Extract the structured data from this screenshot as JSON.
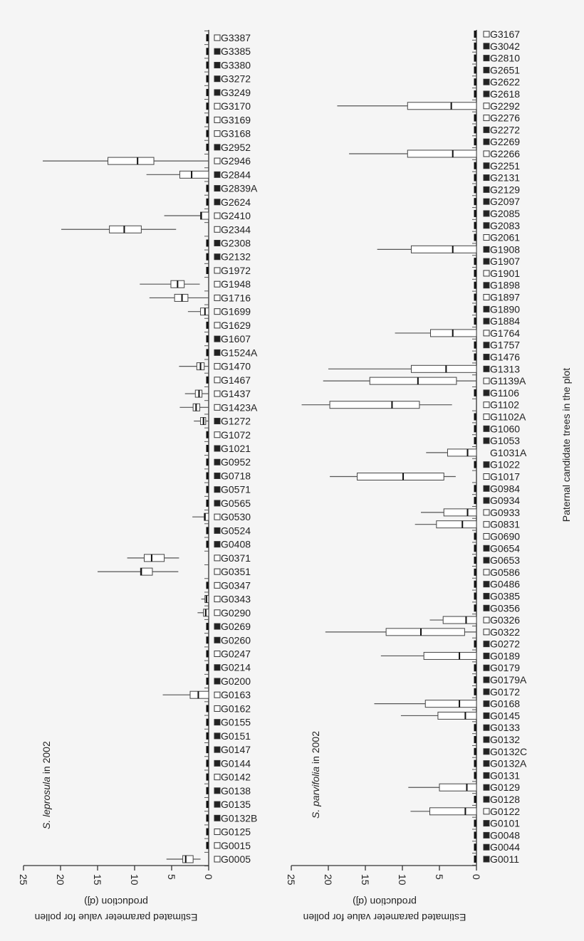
{
  "chart_data": {
    "type": "boxplot-horizontal",
    "ylabel": "Paternal candidate trees in the plot",
    "xlabel_line1": "Estimated parameter value for pollen",
    "xlabel_line2": "production (α̂j)",
    "xlim": [
      25,
      0
    ],
    "xticks": [
      "25",
      "20",
      "15",
      "10",
      "5",
      "0"
    ],
    "grid": false,
    "marker_colors": {
      "filled": "#222222",
      "open": "#ffffff"
    },
    "panels": [
      {
        "species": "S. leprosula",
        "suffix": " in 2002",
        "stats_order": [
          "whisker_low",
          "q1",
          "median",
          "q3",
          "whisker_high"
        ],
        "trees": [
          [
            "G3387",
            "open",
            null
          ],
          [
            "G3385",
            "filled",
            null
          ],
          [
            "G3380",
            "filled",
            null
          ],
          [
            "G3272",
            "filled",
            null
          ],
          [
            "G3249",
            "filled",
            null
          ],
          [
            "G3170",
            "open",
            null
          ],
          [
            "G3169",
            "open",
            null
          ],
          [
            "G3168",
            "open",
            null
          ],
          [
            "G2952",
            "filled",
            null
          ],
          [
            "G2946",
            "open",
            [
              0,
              7.4,
              9.6,
              13.6,
              22.4
            ]
          ],
          [
            "G2844",
            "filled",
            [
              0,
              0,
              2.3,
              3.9,
              8.4
            ]
          ],
          [
            "G2839A",
            "filled",
            null
          ],
          [
            "G2624",
            "filled",
            null
          ],
          [
            "G2410",
            "open",
            [
              0,
              0,
              1.0,
              1.1,
              6.0
            ]
          ],
          [
            "G2344",
            "open",
            [
              4.4,
              9.1,
              11.4,
              13.4,
              19.9
            ]
          ],
          [
            "G2308",
            "filled",
            null
          ],
          [
            "G2132",
            "filled",
            null
          ],
          [
            "G1972",
            "open",
            null
          ],
          [
            "G1948",
            "open",
            [
              1.2,
              3.3,
              4.2,
              5.1,
              9.3
            ]
          ],
          [
            "G1716",
            "open",
            [
              0,
              2.8,
              3.6,
              4.6,
              8.0
            ]
          ],
          [
            "G1699",
            "open",
            [
              0,
              0,
              0.5,
              1.1,
              2.8
            ]
          ],
          [
            "G1629",
            "open",
            null
          ],
          [
            "G1607",
            "filled",
            null
          ],
          [
            "G1524A",
            "filled",
            null
          ],
          [
            "G1470",
            "open",
            [
              0,
              0.6,
              1.1,
              1.6,
              4.0
            ]
          ],
          [
            "G1467",
            "open",
            null
          ],
          [
            "G1437",
            "open",
            [
              0,
              0.9,
              1.3,
              1.8,
              3.2
            ]
          ],
          [
            "G1423A",
            "open",
            [
              0,
              1.2,
              1.7,
              2.1,
              3.9
            ]
          ],
          [
            "G1272",
            "filled",
            [
              0,
              0.4,
              0.7,
              1.1,
              2.0
            ]
          ],
          [
            "G1072",
            "open",
            null
          ],
          [
            "G1021",
            "filled",
            null
          ],
          [
            "G0952",
            "filled",
            null
          ],
          [
            "G0718",
            "filled",
            null
          ],
          [
            "G0571",
            "filled",
            null
          ],
          [
            "G0565",
            "filled",
            null
          ],
          [
            "G0530",
            "open",
            [
              0,
              0,
              0.5,
              0.6,
              2.2
            ]
          ],
          [
            "G0524",
            "filled",
            null
          ],
          [
            "G0408",
            "filled",
            null
          ],
          [
            "G0371",
            "open",
            [
              4.0,
              6.0,
              7.7,
              8.7,
              11.0
            ]
          ],
          [
            "G0351",
            "open",
            [
              4.1,
              7.6,
              9.1,
              9.2,
              15.0
            ]
          ],
          [
            "G0347",
            "open",
            null
          ],
          [
            "G0343",
            "open",
            [
              0,
              0,
              0.3,
              0.5,
              1.0
            ]
          ],
          [
            "G0290",
            "open",
            [
              0,
              0,
              0.4,
              0.7,
              1.5
            ]
          ],
          [
            "G0269",
            "filled",
            null
          ],
          [
            "G0260",
            "filled",
            null
          ],
          [
            "G0247",
            "open",
            null
          ],
          [
            "G0214",
            "filled",
            null
          ],
          [
            "G0200",
            "filled",
            null
          ],
          [
            "G0163",
            "open",
            [
              0,
              0,
              1.4,
              2.5,
              6.2
            ]
          ],
          [
            "G0162",
            "open",
            null
          ],
          [
            "G0155",
            "filled",
            null
          ],
          [
            "G0151",
            "filled",
            null
          ],
          [
            "G0147",
            "filled",
            null
          ],
          [
            "G0144",
            "filled",
            null
          ],
          [
            "G0142",
            "open",
            null
          ],
          [
            "G0138",
            "filled",
            null
          ],
          [
            "G0135",
            "filled",
            null
          ],
          [
            "G0132B",
            "filled",
            null
          ],
          [
            "G0125",
            "open",
            null
          ],
          [
            "G0015",
            "open",
            null
          ],
          [
            "G0005",
            "open",
            [
              1.1,
              2.1,
              3.1,
              3.5,
              5.7
            ]
          ]
        ]
      },
      {
        "species": "S. parvifolia",
        "suffix": " in 2002",
        "stats_order": [
          "whisker_low",
          "q1",
          "median",
          "q3",
          "whisker_high"
        ],
        "trees": [
          [
            "G3167",
            "open",
            null
          ],
          [
            "G3042",
            "filled",
            null
          ],
          [
            "G2810",
            "filled",
            null
          ],
          [
            "G2651",
            "filled",
            null
          ],
          [
            "G2622",
            "filled",
            null
          ],
          [
            "G2618",
            "filled",
            null
          ],
          [
            "G2292",
            "open",
            [
              0,
              0,
              3.4,
              9.3,
              18.8
            ]
          ],
          [
            "G2276",
            "open",
            null
          ],
          [
            "G2272",
            "filled",
            null
          ],
          [
            "G2269",
            "filled",
            null
          ],
          [
            "G2266",
            "open",
            [
              0,
              0,
              3.2,
              9.3,
              17.2
            ]
          ],
          [
            "G2251",
            "filled",
            null
          ],
          [
            "G2131",
            "filled",
            null
          ],
          [
            "G2129",
            "filled",
            null
          ],
          [
            "G2097",
            "filled",
            null
          ],
          [
            "G2085",
            "filled",
            null
          ],
          [
            "G2083",
            "filled",
            null
          ],
          [
            "G2061",
            "open",
            null
          ],
          [
            "G1908",
            "filled",
            [
              0,
              0,
              3.2,
              8.8,
              13.4
            ]
          ],
          [
            "G1907",
            "filled",
            null
          ],
          [
            "G1901",
            "open",
            null
          ],
          [
            "G1898",
            "filled",
            null
          ],
          [
            "G1897",
            "open",
            null
          ],
          [
            "G1890",
            "filled",
            null
          ],
          [
            "G1884",
            "filled",
            null
          ],
          [
            "G1764",
            "open",
            [
              0,
              0,
              3.2,
              6.2,
              11.0
            ]
          ],
          [
            "G1757",
            "filled",
            null
          ],
          [
            "G1476",
            "filled",
            null
          ],
          [
            "G1313",
            "filled",
            [
              0,
              0,
              4.1,
              8.8,
              20.0
            ]
          ],
          [
            "G1139A",
            "open",
            [
              0,
              2.7,
              7.9,
              14.4,
              20.7
            ]
          ],
          [
            "G1106",
            "filled",
            null
          ],
          [
            "G1102",
            "open",
            [
              3.3,
              7.7,
              11.4,
              19.8,
              23.6
            ]
          ],
          [
            "G1102A",
            "open",
            null
          ],
          [
            "G1060",
            "filled",
            null
          ],
          [
            "G1053",
            "filled",
            null
          ],
          [
            "G1031A",
            "none",
            [
              0,
              0,
              1.2,
              3.9,
              6.8
            ]
          ],
          [
            "G1022",
            "filled",
            null
          ],
          [
            "G1017",
            "open",
            [
              2.8,
              4.4,
              9.9,
              16.1,
              19.8
            ]
          ],
          [
            "G0984",
            "filled",
            null
          ],
          [
            "G0934",
            "filled",
            null
          ],
          [
            "G0933",
            "open",
            [
              0,
              0,
              1.2,
              4.4,
              7.5
            ]
          ],
          [
            "G0831",
            "open",
            [
              0,
              0,
              1.9,
              5.4,
              8.3
            ]
          ],
          [
            "G0690",
            "open",
            null
          ],
          [
            "G0654",
            "filled",
            null
          ],
          [
            "G0653",
            "filled",
            null
          ],
          [
            "G0586",
            "open",
            null
          ],
          [
            "G0486",
            "filled",
            null
          ],
          [
            "G0385",
            "filled",
            null
          ],
          [
            "G0356",
            "filled",
            null
          ],
          [
            "G0326",
            "open",
            [
              0,
              0,
              1.4,
              4.5,
              6.3
            ]
          ],
          [
            "G0322",
            "open",
            [
              0,
              1.6,
              7.5,
              12.2,
              20.4
            ]
          ],
          [
            "G0272",
            "filled",
            null
          ],
          [
            "G0189",
            "filled",
            [
              0,
              0,
              2.3,
              7.1,
              12.9
            ]
          ],
          [
            "G0179",
            "filled",
            null
          ],
          [
            "G0179A",
            "filled",
            null
          ],
          [
            "G0172",
            "filled",
            null
          ],
          [
            "G0168",
            "filled",
            [
              0,
              0,
              2.3,
              6.9,
              13.8
            ]
          ],
          [
            "G0145",
            "filled",
            [
              0,
              0,
              1.5,
              5.2,
              10.2
            ]
          ],
          [
            "G0133",
            "filled",
            null
          ],
          [
            "G0132",
            "filled",
            null
          ],
          [
            "G0132C",
            "filled",
            null
          ],
          [
            "G0132A",
            "filled",
            null
          ],
          [
            "G0131",
            "filled",
            null
          ],
          [
            "G0129",
            "filled",
            [
              0,
              0,
              1.3,
              5.0,
              9.2
            ]
          ],
          [
            "G0128",
            "filled",
            null
          ],
          [
            "G0122",
            "open",
            [
              0,
              0,
              1.5,
              6.3,
              8.9
            ]
          ],
          [
            "G0101",
            "filled",
            null
          ],
          [
            "G0048",
            "filled",
            null
          ],
          [
            "G0044",
            "filled",
            null
          ],
          [
            "G0011",
            "filled",
            null
          ]
        ]
      }
    ]
  }
}
